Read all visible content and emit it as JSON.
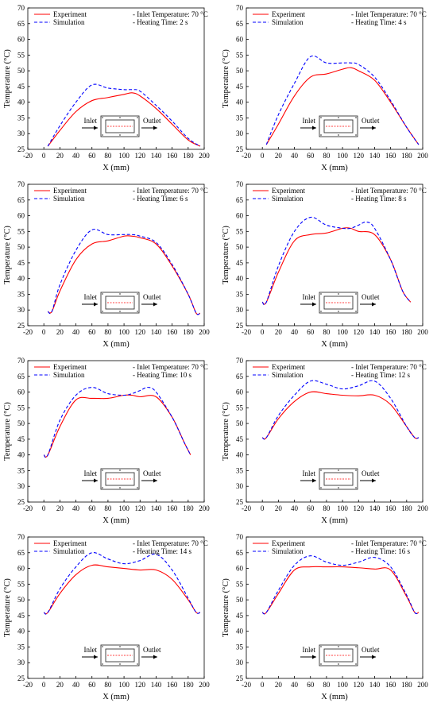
{
  "colors": {
    "experiment": "#ff0000",
    "simulation": "#0000ff",
    "axis": "#000000",
    "background": "#ffffff"
  },
  "shared": {
    "xlabel": "X (mm)",
    "ylabel": "Temperature (°C)",
    "legend_experiment": "Experiment",
    "legend_simulation": "Simulation",
    "inlet_temp_text": "- Inlet Temperature: 70 °C",
    "inlet_label": "Inlet",
    "outlet_label": "Outlet"
  },
  "chart_data": [
    {
      "type": "line",
      "heating_text": "- Heating Time: 2 s",
      "xlabel": "X (mm)",
      "ylabel": "Temperature (°C)",
      "xlim": [
        -20,
        200
      ],
      "ylim": [
        25,
        70
      ],
      "xticks": [
        -20,
        0,
        20,
        40,
        60,
        80,
        100,
        120,
        140,
        160,
        180,
        200
      ],
      "yticks": [
        25,
        30,
        35,
        40,
        45,
        50,
        55,
        60,
        65,
        70
      ],
      "legend": "top-left",
      "series": [
        {
          "name": "Experiment",
          "x": [
            5,
            20,
            40,
            60,
            80,
            100,
            110,
            120,
            140,
            160,
            180,
            195
          ],
          "y": [
            26,
            31,
            37,
            40.5,
            41.5,
            42.5,
            43,
            42,
            38,
            33,
            28,
            26
          ]
        },
        {
          "name": "Simulation",
          "x": [
            5,
            20,
            40,
            60,
            80,
            100,
            110,
            120,
            140,
            160,
            180,
            195
          ],
          "y": [
            26,
            32.5,
            40,
            45.5,
            44.5,
            44,
            44,
            43.5,
            39,
            34,
            28.5,
            26
          ]
        }
      ]
    },
    {
      "type": "line",
      "heating_text": "- Heating Time: 4 s",
      "xlabel": "X (mm)",
      "ylabel": "Temperature (°C)",
      "xlim": [
        -20,
        200
      ],
      "ylim": [
        25,
        70
      ],
      "xticks": [
        -20,
        0,
        20,
        40,
        60,
        80,
        100,
        120,
        140,
        160,
        180,
        200
      ],
      "yticks": [
        25,
        30,
        35,
        40,
        45,
        50,
        55,
        60,
        65,
        70
      ],
      "legend": "top-left",
      "series": [
        {
          "name": "Experiment",
          "x": [
            5,
            20,
            40,
            60,
            80,
            100,
            110,
            120,
            140,
            160,
            180,
            195
          ],
          "y": [
            26.5,
            33,
            42,
            48,
            49,
            50.5,
            51,
            50,
            47,
            40,
            32,
            26.5
          ]
        },
        {
          "name": "Simulation",
          "x": [
            5,
            20,
            40,
            60,
            80,
            100,
            110,
            120,
            140,
            160,
            180,
            195
          ],
          "y": [
            26.5,
            36,
            46,
            54.5,
            52.5,
            52.5,
            52.5,
            52,
            48,
            40.5,
            32,
            26.5
          ]
        }
      ]
    },
    {
      "type": "line",
      "heating_text": "- Heating Time: 6 s",
      "xlabel": "X (mm)",
      "ylabel": "Temperature (°C)",
      "xlim": [
        -20,
        200
      ],
      "ylim": [
        25,
        70
      ],
      "xticks": [
        -20,
        0,
        20,
        40,
        60,
        80,
        100,
        120,
        140,
        160,
        180,
        200
      ],
      "yticks": [
        25,
        30,
        35,
        40,
        45,
        50,
        55,
        60,
        65,
        70
      ],
      "legend": "top-left",
      "series": [
        {
          "name": "Experiment",
          "x": [
            5,
            10,
            20,
            40,
            60,
            80,
            100,
            110,
            120,
            140,
            160,
            180,
            190,
            195
          ],
          "y": [
            29.5,
            29.5,
            36,
            46,
            51,
            52,
            53.5,
            53.5,
            53,
            51,
            44,
            35,
            29,
            29
          ]
        },
        {
          "name": "Simulation",
          "x": [
            5,
            10,
            20,
            40,
            60,
            80,
            100,
            110,
            120,
            140,
            160,
            180,
            190,
            195
          ],
          "y": [
            29.5,
            29.5,
            38,
            49,
            55.5,
            54,
            54,
            54,
            53.5,
            51.5,
            44.5,
            35,
            29,
            29
          ]
        }
      ]
    },
    {
      "type": "line",
      "heating_text": "- Heating Time: 8 s",
      "xlabel": "X (mm)",
      "ylabel": "Temperature (°C)",
      "xlim": [
        -20,
        200
      ],
      "ylim": [
        25,
        70
      ],
      "xticks": [
        -20,
        0,
        20,
        40,
        60,
        80,
        100,
        120,
        140,
        160,
        180,
        200
      ],
      "yticks": [
        25,
        30,
        35,
        40,
        45,
        50,
        55,
        60,
        65,
        70
      ],
      "legend": "top-left",
      "series": [
        {
          "name": "Experiment",
          "x": [
            0,
            5,
            20,
            40,
            60,
            80,
            100,
            110,
            120,
            140,
            160,
            175,
            185
          ],
          "y": [
            32.5,
            32.5,
            42,
            52,
            54,
            54.5,
            56,
            56,
            55,
            54,
            46,
            36,
            32.5
          ]
        },
        {
          "name": "Simulation",
          "x": [
            0,
            5,
            20,
            40,
            60,
            80,
            100,
            110,
            120,
            130,
            140,
            160,
            175,
            185
          ],
          "y": [
            32.5,
            32.5,
            44,
            55,
            59.5,
            57,
            56,
            56,
            57,
            58,
            56,
            46,
            36,
            32.5
          ]
        }
      ]
    },
    {
      "type": "line",
      "heating_text": "- Heating Time: 10 s",
      "xlabel": "X (mm)",
      "ylabel": "Temperature (°C)",
      "xlim": [
        -20,
        200
      ],
      "ylim": [
        25,
        70
      ],
      "xticks": [
        -20,
        0,
        20,
        40,
        60,
        80,
        100,
        120,
        140,
        160,
        180,
        200
      ],
      "yticks": [
        25,
        30,
        35,
        40,
        45,
        50,
        55,
        60,
        65,
        70
      ],
      "legend": "top-left",
      "series": [
        {
          "name": "Experiment",
          "x": [
            0,
            5,
            20,
            40,
            60,
            80,
            100,
            110,
            120,
            140,
            160,
            175,
            183
          ],
          "y": [
            40,
            40,
            49,
            57.5,
            58,
            58,
            59,
            59,
            58.5,
            58.5,
            52,
            44,
            40
          ]
        },
        {
          "name": "Simulation",
          "x": [
            0,
            5,
            20,
            40,
            60,
            80,
            100,
            110,
            120,
            130,
            140,
            160,
            175,
            183
          ],
          "y": [
            40,
            40,
            51,
            59,
            61.5,
            59.5,
            59,
            59.5,
            60.5,
            61.5,
            60,
            52,
            44,
            40
          ]
        }
      ]
    },
    {
      "type": "line",
      "heating_text": "- Heating Time: 12 s",
      "xlabel": "X (mm)",
      "ylabel": "Temperature (°C)",
      "xlim": [
        -20,
        200
      ],
      "ylim": [
        25,
        70
      ],
      "xticks": [
        -20,
        0,
        20,
        40,
        60,
        80,
        100,
        120,
        140,
        160,
        180,
        200
      ],
      "yticks": [
        25,
        30,
        35,
        40,
        45,
        50,
        55,
        60,
        65,
        70
      ],
      "legend": "top-left",
      "series": [
        {
          "name": "Experiment",
          "x": [
            0,
            5,
            20,
            40,
            60,
            80,
            100,
            120,
            140,
            160,
            180,
            190,
            195
          ],
          "y": [
            45.5,
            45.5,
            51.5,
            57,
            60,
            59.5,
            59,
            58.8,
            59,
            56,
            49,
            45.5,
            45.5
          ]
        },
        {
          "name": "Simulation",
          "x": [
            0,
            5,
            20,
            40,
            60,
            80,
            100,
            120,
            140,
            160,
            180,
            190,
            195
          ],
          "y": [
            45.5,
            45.5,
            52.5,
            59,
            63.5,
            62.5,
            61,
            62,
            63.5,
            58,
            49,
            45.5,
            45.5
          ]
        }
      ]
    },
    {
      "type": "line",
      "heating_text": "- Heating Time: 14 s",
      "xlabel": "X (mm)",
      "ylabel": "Temperature (°C)",
      "xlim": [
        -20,
        200
      ],
      "ylim": [
        25,
        70
      ],
      "xticks": [
        -20,
        0,
        20,
        40,
        60,
        80,
        100,
        120,
        140,
        160,
        180,
        200
      ],
      "yticks": [
        25,
        30,
        35,
        40,
        45,
        50,
        55,
        60,
        65,
        70
      ],
      "legend": "top-left",
      "series": [
        {
          "name": "Experiment",
          "x": [
            0,
            5,
            20,
            40,
            60,
            80,
            100,
            120,
            140,
            160,
            180,
            190,
            195
          ],
          "y": [
            46,
            46,
            52,
            58,
            61,
            60.5,
            60,
            59.5,
            59.5,
            56.5,
            50,
            46,
            46
          ]
        },
        {
          "name": "Simulation",
          "x": [
            0,
            5,
            20,
            40,
            60,
            80,
            100,
            120,
            140,
            160,
            180,
            190,
            195
          ],
          "y": [
            46,
            46,
            53.5,
            60.5,
            65,
            63,
            61.5,
            62.5,
            64.5,
            59.5,
            50.5,
            46,
            46
          ]
        }
      ]
    },
    {
      "type": "line",
      "heating_text": "- Heating Time: 16 s",
      "xlabel": "X (mm)",
      "ylabel": "Temperature (°C)",
      "xlim": [
        -20,
        200
      ],
      "ylim": [
        25,
        70
      ],
      "xticks": [
        -20,
        0,
        20,
        40,
        60,
        80,
        100,
        120,
        140,
        160,
        180,
        200
      ],
      "yticks": [
        25,
        30,
        35,
        40,
        45,
        50,
        55,
        60,
        65,
        70
      ],
      "legend": "top-left",
      "series": [
        {
          "name": "Experiment",
          "x": [
            0,
            5,
            20,
            40,
            60,
            80,
            100,
            120,
            140,
            160,
            180,
            190,
            195
          ],
          "y": [
            46,
            46,
            52,
            59.5,
            60.5,
            60.5,
            60.5,
            60.2,
            59.8,
            59.5,
            51,
            46,
            46
          ]
        },
        {
          "name": "Simulation",
          "x": [
            0,
            5,
            20,
            40,
            60,
            80,
            100,
            120,
            140,
            160,
            180,
            190,
            195
          ],
          "y": [
            46,
            46,
            53,
            61,
            64,
            62,
            61,
            62,
            63.5,
            60.5,
            51.5,
            46,
            46
          ]
        }
      ]
    }
  ]
}
